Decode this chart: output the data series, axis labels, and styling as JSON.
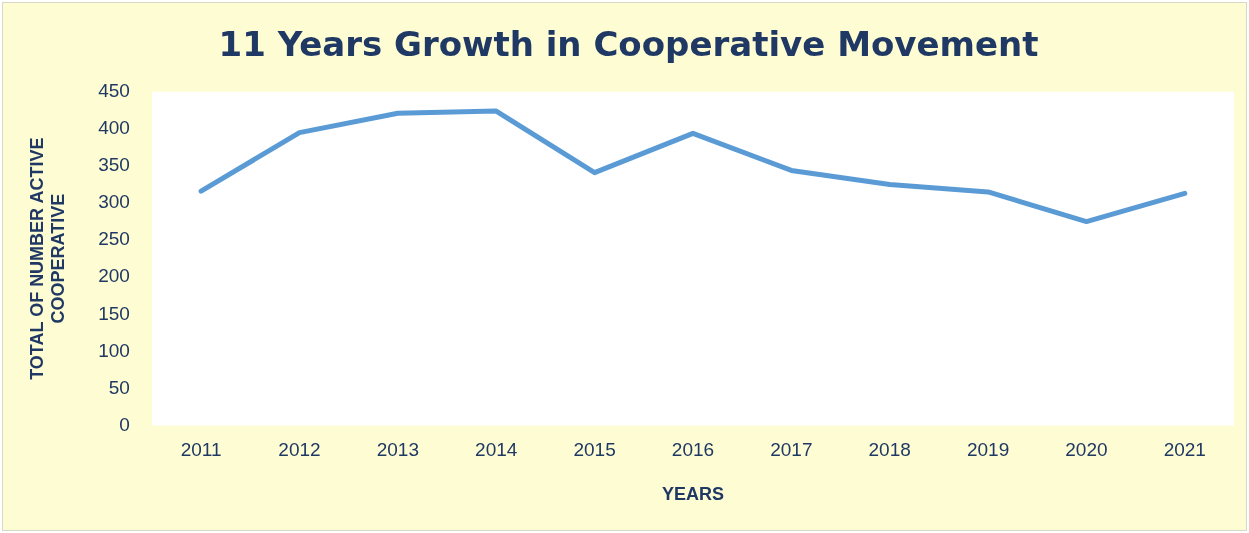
{
  "chart_data": {
    "type": "line",
    "title": "11 Years Growth in Cooperative Movement",
    "xlabel": "YEARS",
    "ylabel": "TOTAL OF NUMBER ACTIVE COOPERATIVE",
    "categories": [
      "2011",
      "2012",
      "2013",
      "2014",
      "2015",
      "2016",
      "2017",
      "2018",
      "2019",
      "2020",
      "2021"
    ],
    "series": [
      {
        "color": "#5b9bd5",
        "values": [
          316,
          395,
          421,
          424,
          341,
          394,
          344,
          325,
          315,
          275,
          313
        ]
      }
    ],
    "ylim": [
      0,
      450
    ],
    "yticks": [
      0,
      50,
      100,
      150,
      200,
      250,
      300,
      350,
      400,
      450
    ],
    "grid": false,
    "legend": false,
    "marker": "none",
    "line_style": "solid"
  }
}
